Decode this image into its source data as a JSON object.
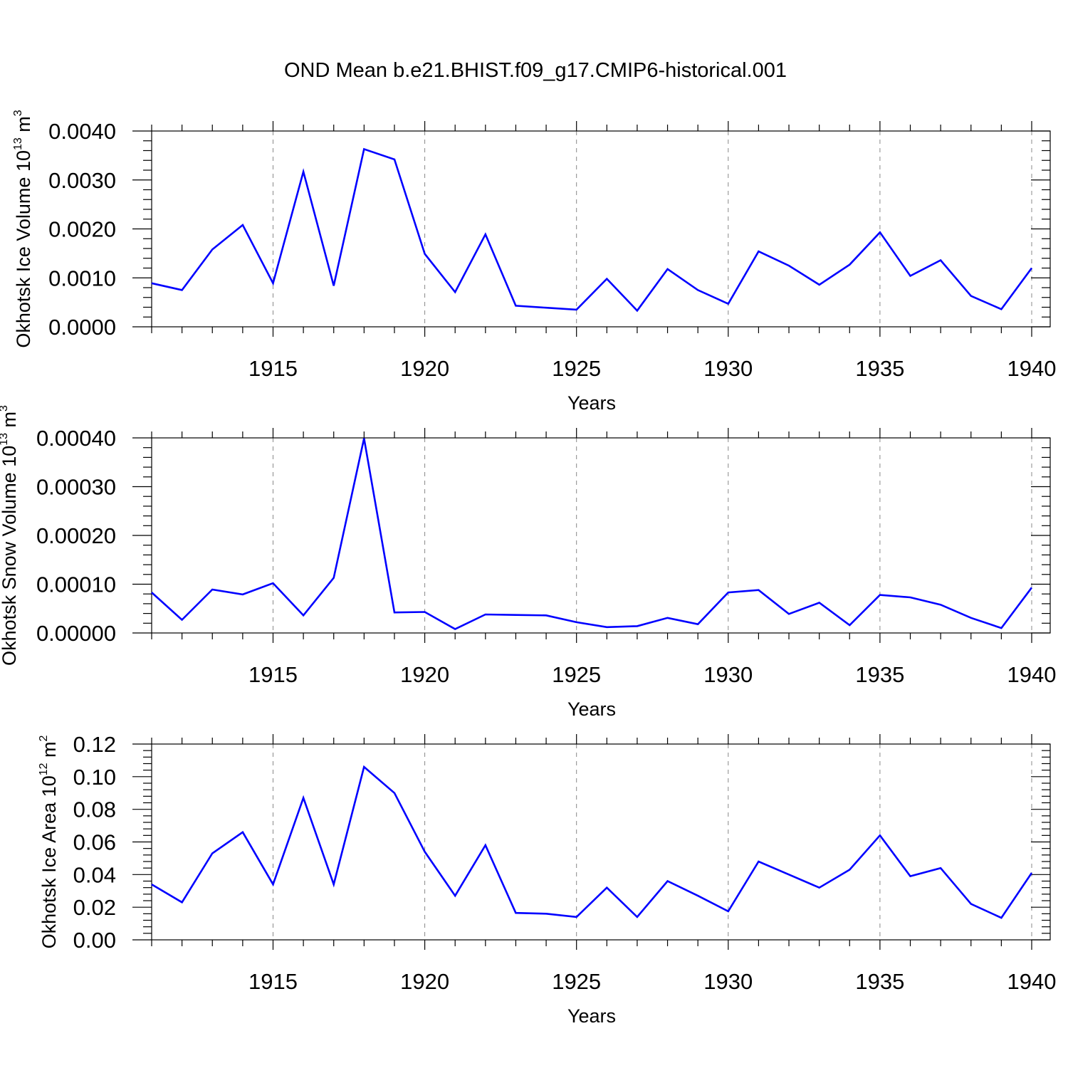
{
  "title": "OND Mean b.e21.BHIST.f09_g17.CMIP6-historical.001",
  "chart_data": [
    {
      "type": "line",
      "xlabel": "Years",
      "ylabel": {
        "main": "Okhotsk Ice Volume 10",
        "exp": "13",
        "unit": " m",
        "unit_exp": "3"
      },
      "xlim": [
        1911,
        1940
      ],
      "xticks": [
        1915,
        1920,
        1925,
        1930,
        1935,
        1940
      ],
      "xtick_labels": [
        "1915",
        "1920",
        "1925",
        "1930",
        "1935",
        "1940"
      ],
      "ylim": [
        0,
        0.004
      ],
      "yticks": [
        0,
        0.001,
        0.002,
        0.003,
        0.004
      ],
      "ytick_labels": [
        "0.0000",
        "0.0010",
        "0.0020",
        "0.0030",
        "0.0040"
      ],
      "grid": "vertical dashed at labeled years",
      "line_color": "#0000ff",
      "x": [
        1911,
        1912,
        1913,
        1914,
        1915,
        1916,
        1917,
        1918,
        1919,
        1920,
        1921,
        1922,
        1923,
        1924,
        1925,
        1926,
        1927,
        1928,
        1929,
        1930,
        1931,
        1932,
        1933,
        1934,
        1935,
        1936,
        1937,
        1938,
        1939,
        1940
      ],
      "values": [
        0.00089,
        0.00075,
        0.00158,
        0.00208,
        0.00089,
        0.00317,
        0.00084,
        0.00363,
        0.00342,
        0.00149,
        0.00071,
        0.00189,
        0.00043,
        0.00039,
        0.00035,
        0.00098,
        0.00033,
        0.00118,
        0.00075,
        0.00047,
        0.00154,
        0.00125,
        0.00086,
        0.00127,
        0.00193,
        0.00104,
        0.00136,
        0.00063,
        0.00036,
        0.0012
      ]
    },
    {
      "type": "line",
      "xlabel": "Years",
      "ylabel": {
        "main": "Okhotsk Snow Volume 10",
        "exp": "13",
        "unit": " m",
        "unit_exp": "3"
      },
      "xlim": [
        1911,
        1940
      ],
      "xticks": [
        1915,
        1920,
        1925,
        1930,
        1935,
        1940
      ],
      "xtick_labels": [
        "1915",
        "1920",
        "1925",
        "1930",
        "1935",
        "1940"
      ],
      "ylim": [
        0,
        0.0004
      ],
      "yticks": [
        0,
        0.0001,
        0.0002,
        0.0003,
        0.0004
      ],
      "ytick_labels": [
        "0.00000",
        "0.00010",
        "0.00020",
        "0.00030",
        "0.00040"
      ],
      "grid": "vertical dashed at labeled years",
      "line_color": "#0000ff",
      "x": [
        1911,
        1912,
        1913,
        1914,
        1915,
        1916,
        1917,
        1918,
        1919,
        1920,
        1921,
        1922,
        1923,
        1924,
        1925,
        1926,
        1927,
        1928,
        1929,
        1930,
        1931,
        1932,
        1933,
        1934,
        1935,
        1936,
        1937,
        1938,
        1939,
        1940
      ],
      "values": [
        8.3e-05,
        2.7e-05,
        8.9e-05,
        7.9e-05,
        0.000102,
        3.6e-05,
        0.000113,
        0.000399,
        4.2e-05,
        4.3e-05,
        8e-06,
        3.8e-05,
        3.7e-05,
        3.6e-05,
        2.2e-05,
        1.2e-05,
        1.4e-05,
        3.1e-05,
        1.8e-05,
        8.3e-05,
        8.8e-05,
        3.9e-05,
        6.2e-05,
        1.6e-05,
        7.8e-05,
        7.3e-05,
        5.8e-05,
        3.1e-05,
        1e-05,
        9.3e-05
      ]
    },
    {
      "type": "line",
      "xlabel": "Years",
      "ylabel": {
        "main": "Okhotsk Ice Area 10",
        "exp": "12",
        "unit": " m",
        "unit_exp": "2"
      },
      "xlim": [
        1911,
        1940
      ],
      "xticks": [
        1915,
        1920,
        1925,
        1930,
        1935,
        1940
      ],
      "xtick_labels": [
        "1915",
        "1920",
        "1925",
        "1930",
        "1935",
        "1940"
      ],
      "ylim": [
        0,
        0.12
      ],
      "yticks": [
        0,
        0.02,
        0.04,
        0.06,
        0.08,
        0.1,
        0.12
      ],
      "ytick_labels": [
        "0.00",
        "0.02",
        "0.04",
        "0.06",
        "0.08",
        "0.10",
        "0.12"
      ],
      "grid": "vertical dashed at labeled years",
      "line_color": "#0000ff",
      "x": [
        1911,
        1912,
        1913,
        1914,
        1915,
        1916,
        1917,
        1918,
        1919,
        1920,
        1921,
        1922,
        1923,
        1924,
        1925,
        1926,
        1927,
        1928,
        1929,
        1930,
        1931,
        1932,
        1933,
        1934,
        1935,
        1936,
        1937,
        1938,
        1939,
        1940
      ],
      "values": [
        0.034,
        0.023,
        0.053,
        0.066,
        0.034,
        0.087,
        0.034,
        0.106,
        0.09,
        0.054,
        0.027,
        0.058,
        0.0165,
        0.016,
        0.014,
        0.032,
        0.014,
        0.036,
        0.027,
        0.0175,
        0.048,
        0.04,
        0.032,
        0.043,
        0.064,
        0.039,
        0.044,
        0.022,
        0.0135,
        0.041
      ]
    }
  ]
}
